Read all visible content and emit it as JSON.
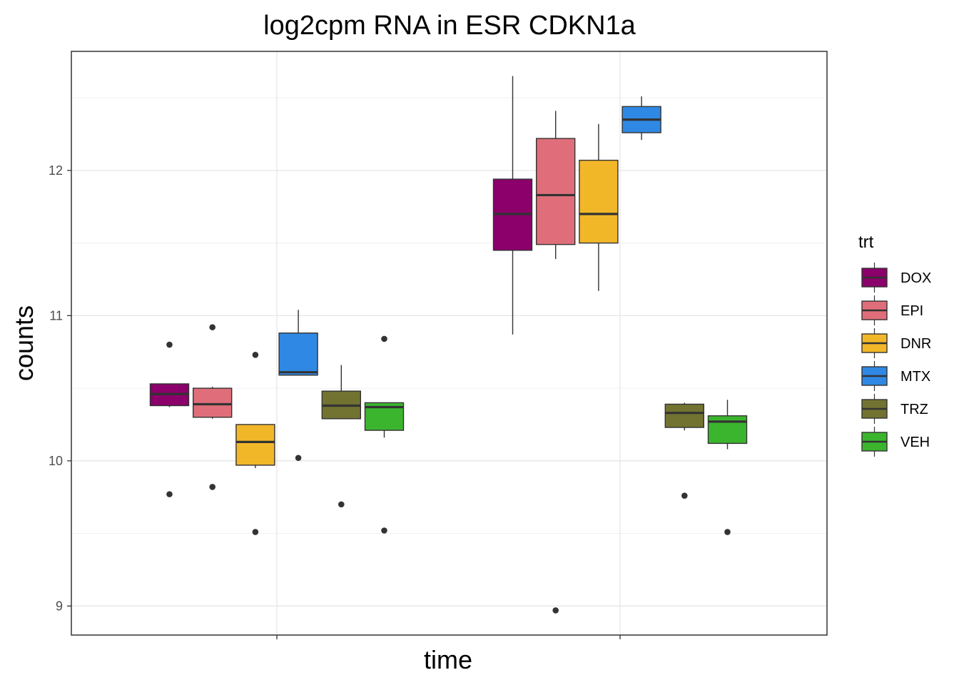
{
  "chart_data": {
    "type": "boxplot",
    "title": "log2cpm RNA in ESR CDKN1a",
    "xlabel": "time",
    "ylabel": "counts",
    "ylim": [
      8.8,
      12.82
    ],
    "yticks": [
      9,
      10,
      11,
      12
    ],
    "x_categories": [
      "",
      ""
    ],
    "grid": true,
    "legend": {
      "title": "trt",
      "position": "right",
      "entries": [
        {
          "name": "DOX",
          "color": "#8B006B"
        },
        {
          "name": "EPI",
          "color": "#E06E7A"
        },
        {
          "name": "DNR",
          "color": "#F2B729"
        },
        {
          "name": "MTX",
          "color": "#2F88E3"
        },
        {
          "name": "TRZ",
          "color": "#727331"
        },
        {
          "name": "VEH",
          "color": "#3CB52E"
        }
      ]
    },
    "groups": [
      {
        "x": "",
        "boxes": [
          {
            "trt": "DOX",
            "whisker_low": 10.37,
            "q1": 10.38,
            "median": 10.46,
            "q3": 10.53,
            "whisker_high": 10.53,
            "outliers": [
              10.8,
              9.77
            ]
          },
          {
            "trt": "EPI",
            "whisker_low": 10.29,
            "q1": 10.3,
            "median": 10.39,
            "q3": 10.5,
            "whisker_high": 10.51,
            "outliers": [
              10.92,
              9.82
            ]
          },
          {
            "trt": "DNR",
            "whisker_low": 9.95,
            "q1": 9.97,
            "median": 10.13,
            "q3": 10.25,
            "whisker_high": 10.25,
            "outliers": [
              10.73,
              9.51
            ]
          },
          {
            "trt": "MTX",
            "whisker_low": 10.59,
            "q1": 10.59,
            "median": 10.61,
            "q3": 10.88,
            "whisker_high": 11.04,
            "outliers": [
              10.02
            ]
          },
          {
            "trt": "TRZ",
            "whisker_low": 10.29,
            "q1": 10.29,
            "median": 10.38,
            "q3": 10.48,
            "whisker_high": 10.66,
            "outliers": [
              9.7
            ]
          },
          {
            "trt": "VEH",
            "whisker_low": 10.16,
            "q1": 10.21,
            "median": 10.37,
            "q3": 10.4,
            "whisker_high": 10.4,
            "outliers": [
              10.84,
              9.52
            ]
          }
        ]
      },
      {
        "x": "",
        "boxes": [
          {
            "trt": "DOX",
            "whisker_low": 10.87,
            "q1": 11.45,
            "median": 11.7,
            "q3": 11.94,
            "whisker_high": 12.65,
            "outliers": []
          },
          {
            "trt": "EPI",
            "whisker_low": 11.39,
            "q1": 11.49,
            "median": 11.83,
            "q3": 12.22,
            "whisker_high": 12.41,
            "outliers": [
              8.97
            ]
          },
          {
            "trt": "DNR",
            "whisker_low": 11.17,
            "q1": 11.5,
            "median": 11.7,
            "q3": 12.07,
            "whisker_high": 12.32,
            "outliers": []
          },
          {
            "trt": "MTX",
            "whisker_low": 12.21,
            "q1": 12.26,
            "median": 12.35,
            "q3": 12.44,
            "whisker_high": 12.51,
            "outliers": []
          },
          {
            "trt": "TRZ",
            "whisker_low": 10.21,
            "q1": 10.23,
            "median": 10.33,
            "q3": 10.39,
            "whisker_high": 10.4,
            "outliers": [
              9.76
            ]
          },
          {
            "trt": "VEH",
            "whisker_low": 10.08,
            "q1": 10.12,
            "median": 10.27,
            "q3": 10.31,
            "whisker_high": 10.42,
            "outliers": [
              9.51
            ]
          }
        ]
      }
    ]
  }
}
